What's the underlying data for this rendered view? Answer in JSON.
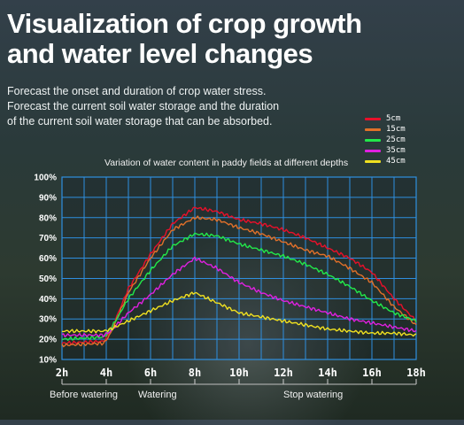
{
  "header": {
    "title_line1": "Visualization of crop growth",
    "title_line2": "and water level changes"
  },
  "description": {
    "line1": "Forecast the onset and duration of crop water stress.",
    "line2": "Forecast the current soil water storage and the duration",
    "line3": "of the current soil water storage that can be absorbed."
  },
  "phases": {
    "before": "Before watering",
    "watering": "Watering",
    "stop": "Stop watering"
  },
  "colors": {
    "grid": "#2e8fe0",
    "s5": "#e8102a",
    "s15": "#e0702a",
    "s25": "#22e84a",
    "s35": "#e020e0",
    "s45": "#f0e020"
  },
  "chart_data": {
    "type": "line",
    "title": "Variation of water content in paddy fields at different depths",
    "x_ticks": [
      "2h",
      "4h",
      "6h",
      "8h",
      "10h",
      "12h",
      "14h",
      "16h",
      "18h"
    ],
    "y_ticks": [
      "100%",
      "90%",
      "80%",
      "70%",
      "60%",
      "50%",
      "40%",
      "30%",
      "20%",
      "10%"
    ],
    "xlim": [
      2,
      18
    ],
    "ylim": [
      10,
      100
    ],
    "grid": true,
    "legend_position": "top-right",
    "series": [
      {
        "name": "5cm",
        "color": "#e8102a",
        "x": [
          2,
          3.9,
          4.2,
          5,
          6,
          7,
          8,
          9,
          10,
          11,
          12,
          13,
          14,
          15,
          16,
          17,
          18
        ],
        "y": [
          18,
          19,
          24,
          45,
          62,
          77,
          85,
          83,
          79,
          77,
          74,
          70,
          65,
          60,
          53,
          40,
          29
        ]
      },
      {
        "name": "15cm",
        "color": "#e0702a",
        "x": [
          2,
          3.9,
          4.2,
          5,
          6,
          7,
          8,
          9,
          10,
          11,
          12,
          13,
          14,
          15,
          16,
          17,
          18
        ],
        "y": [
          17,
          18,
          23,
          43,
          60,
          74,
          80,
          79,
          75,
          72,
          68,
          64,
          61,
          55,
          48,
          36,
          27
        ]
      },
      {
        "name": "25cm",
        "color": "#22e84a",
        "x": [
          2,
          3.9,
          4.2,
          5,
          6,
          7,
          8,
          9,
          10,
          11,
          12,
          13,
          14,
          15,
          16,
          17,
          18
        ],
        "y": [
          20,
          21,
          25,
          40,
          54,
          66,
          72,
          71,
          67,
          64,
          61,
          57,
          52,
          46,
          39,
          33,
          29
        ]
      },
      {
        "name": "35cm",
        "color": "#e020e0",
        "x": [
          2,
          3.9,
          4.2,
          5,
          6,
          7,
          8,
          9,
          10,
          11,
          12,
          13,
          14,
          15,
          16,
          17,
          18
        ],
        "y": [
          22,
          22,
          24,
          33,
          42,
          52,
          60,
          55,
          48,
          43,
          39,
          36,
          33,
          30,
          28,
          26,
          24
        ]
      },
      {
        "name": "45cm",
        "color": "#f0e020",
        "x": [
          2,
          3.9,
          4.2,
          5,
          6,
          7,
          8,
          9,
          10,
          11,
          12,
          13,
          14,
          15,
          16,
          17,
          18
        ],
        "y": [
          24,
          24,
          25,
          29,
          34,
          39,
          43,
          38,
          33,
          31,
          29,
          27,
          25,
          24,
          23,
          23,
          22
        ]
      }
    ]
  }
}
